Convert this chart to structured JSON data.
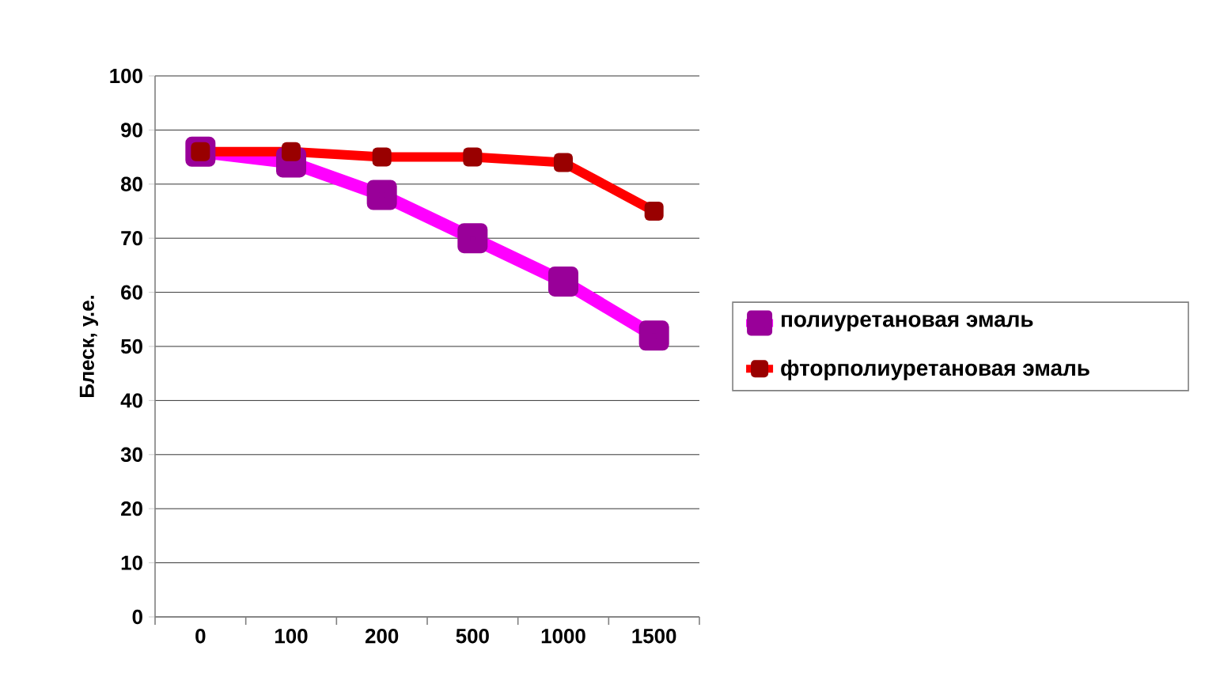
{
  "chart_data": {
    "type": "line",
    "ylabel": "Блеск, у.е.",
    "categories": [
      "0",
      "100",
      "200",
      "500",
      "1000",
      "1500"
    ],
    "series": [
      {
        "name": "полиуретановая эмаль",
        "color": "#ff00ff",
        "values": [
          86,
          84,
          78,
          70,
          62,
          52
        ]
      },
      {
        "name": "фторполиуретановая эмаль",
        "color": "#ff0000",
        "values": [
          86,
          86,
          85,
          85,
          84,
          75
        ]
      }
    ],
    "ylim": [
      0,
      100
    ],
    "yticks": [
      0,
      10,
      20,
      30,
      40,
      50,
      60,
      70,
      80,
      90,
      100
    ],
    "grid": "y",
    "legend": "right",
    "marker": "square",
    "line_style": "solid"
  }
}
